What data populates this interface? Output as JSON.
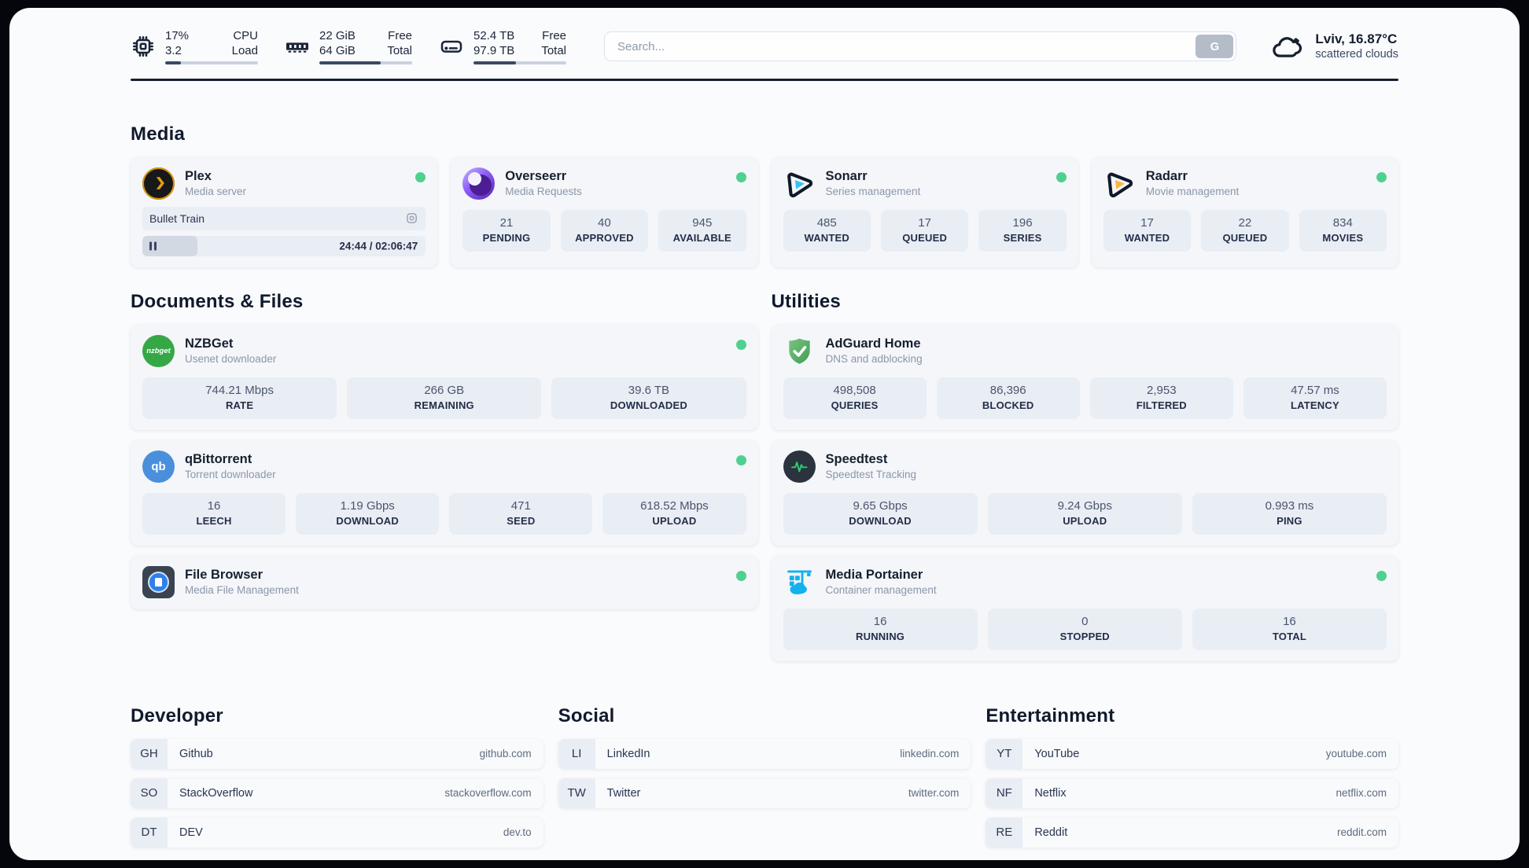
{
  "topbar": {
    "resources": [
      {
        "line1": "17%",
        "line2": "3.2",
        "label1": "CPU",
        "label2": "Load",
        "progress": 17
      },
      {
        "line1": "22 GiB",
        "line2": "64 GiB",
        "label1": "Free",
        "label2": "Total",
        "progress": 66
      },
      {
        "line1": "52.4 TB",
        "line2": "97.9 TB",
        "label1": "Free",
        "label2": "Total",
        "progress": 46
      }
    ],
    "search": {
      "placeholder": "Search...",
      "button_label": "G"
    },
    "weather": {
      "location_temp": "Lviv, 16.87°C",
      "condition": "scattered clouds"
    }
  },
  "media": {
    "header": "Media",
    "plex": {
      "title": "Plex",
      "subtitle": "Media server",
      "now_playing": "Bullet Train",
      "time": "24:44 / 02:06:47",
      "progress": 19.5
    },
    "overseerr": {
      "title": "Overseerr",
      "subtitle": "Media Requests",
      "stats": [
        {
          "value": "21",
          "label": "PENDING"
        },
        {
          "value": "40",
          "label": "APPROVED"
        },
        {
          "value": "945",
          "label": "AVAILABLE"
        }
      ]
    },
    "sonarr": {
      "title": "Sonarr",
      "subtitle": "Series management",
      "stats": [
        {
          "value": "485",
          "label": "WANTED"
        },
        {
          "value": "17",
          "label": "QUEUED"
        },
        {
          "value": "196",
          "label": "SERIES"
        }
      ]
    },
    "radarr": {
      "title": "Radarr",
      "subtitle": "Movie management",
      "stats": [
        {
          "value": "17",
          "label": "WANTED"
        },
        {
          "value": "22",
          "label": "QUEUED"
        },
        {
          "value": "834",
          "label": "MOVIES"
        }
      ]
    }
  },
  "documents": {
    "header": "Documents & Files",
    "nzbget": {
      "title": "NZBGet",
      "subtitle": "Usenet downloader",
      "icon_text": "nzbget",
      "stats": [
        {
          "value": "744.21 Mbps",
          "label": "RATE"
        },
        {
          "value": "266 GB",
          "label": "REMAINING"
        },
        {
          "value": "39.6 TB",
          "label": "DOWNLOADED"
        }
      ]
    },
    "qbittorrent": {
      "title": "qBittorrent",
      "subtitle": "Torrent downloader",
      "icon_text": "qb",
      "stats": [
        {
          "value": "16",
          "label": "LEECH"
        },
        {
          "value": "1.19 Gbps",
          "label": "DOWNLOAD"
        },
        {
          "value": "471",
          "label": "SEED"
        },
        {
          "value": "618.52 Mbps",
          "label": "UPLOAD"
        }
      ]
    },
    "filebrowser": {
      "title": "File Browser",
      "subtitle": "Media File Management"
    }
  },
  "utilities": {
    "header": "Utilities",
    "adguard": {
      "title": "AdGuard Home",
      "subtitle": "DNS and adblocking",
      "stats": [
        {
          "value": "498,508",
          "label": "QUERIES"
        },
        {
          "value": "86,396",
          "label": "BLOCKED"
        },
        {
          "value": "2,953",
          "label": "FILTERED"
        },
        {
          "value": "47.57 ms",
          "label": "LATENCY"
        }
      ]
    },
    "speedtest": {
      "title": "Speedtest",
      "subtitle": "Speedtest Tracking",
      "stats": [
        {
          "value": "9.65 Gbps",
          "label": "DOWNLOAD"
        },
        {
          "value": "9.24 Gbps",
          "label": "UPLOAD"
        },
        {
          "value": "0.993 ms",
          "label": "PING"
        }
      ]
    },
    "portainer": {
      "title": "Media Portainer",
      "subtitle": "Container management",
      "stats": [
        {
          "value": "16",
          "label": "RUNNING"
        },
        {
          "value": "0",
          "label": "STOPPED"
        },
        {
          "value": "16",
          "label": "TOTAL"
        }
      ]
    }
  },
  "bookmarks": {
    "developer": {
      "header": "Developer",
      "items": [
        {
          "abbr": "GH",
          "name": "Github",
          "url": "github.com"
        },
        {
          "abbr": "SO",
          "name": "StackOverflow",
          "url": "stackoverflow.com"
        },
        {
          "abbr": "DT",
          "name": "DEV",
          "url": "dev.to"
        }
      ]
    },
    "social": {
      "header": "Social",
      "items": [
        {
          "abbr": "LI",
          "name": "LinkedIn",
          "url": "linkedin.com"
        },
        {
          "abbr": "TW",
          "name": "Twitter",
          "url": "twitter.com"
        }
      ]
    },
    "entertainment": {
      "header": "Entertainment",
      "items": [
        {
          "abbr": "YT",
          "name": "YouTube",
          "url": "youtube.com"
        },
        {
          "abbr": "NF",
          "name": "Netflix",
          "url": "netflix.com"
        },
        {
          "abbr": "RE",
          "name": "Reddit",
          "url": "reddit.com"
        }
      ]
    }
  },
  "colors": {
    "status_green": "#4ed18f",
    "accent_dark": "#161f31"
  }
}
